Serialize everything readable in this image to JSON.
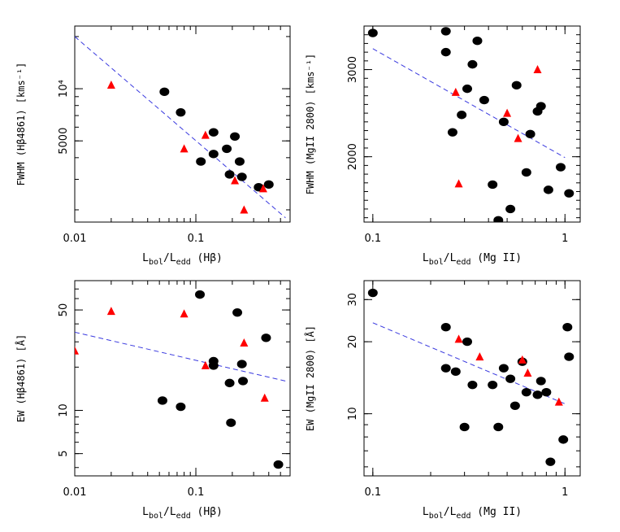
{
  "colors": {
    "circle": "#000000",
    "triangle": "#ff0000",
    "fit": "#3a3adf"
  },
  "chart_data": [
    {
      "id": "tl",
      "type": "scatter",
      "xscale": "log",
      "yscale": "log",
      "xlim": [
        0.01,
        0.6
      ],
      "ylim": [
        1700,
        23000
      ],
      "xticks": [
        {
          "v": 0.01,
          "label": "0.01"
        },
        {
          "v": 0.1,
          "label": "0.1"
        }
      ],
      "yticks": [
        {
          "v": 5000,
          "label": "5000"
        },
        {
          "v": 10000,
          "label": "10⁴"
        }
      ],
      "xlabel": {
        "main": "L",
        "sub1": "bol",
        "mid": "/L",
        "sub2": "edd",
        "tail": " (Hβ)"
      },
      "ylabel": "FWHM (Hβ4861) [kms⁻¹]",
      "fit": [
        [
          0.01,
          20000
        ],
        [
          0.55,
          1800
        ]
      ],
      "series": [
        {
          "marker": "circle",
          "points": [
            [
              0.055,
              9600
            ],
            [
              0.075,
              7300
            ],
            [
              0.11,
              3800
            ],
            [
              0.14,
              5600
            ],
            [
              0.14,
              4200
            ],
            [
              0.18,
              4500
            ],
            [
              0.19,
              3200
            ],
            [
              0.21,
              5300
            ],
            [
              0.23,
              3800
            ],
            [
              0.24,
              3100
            ],
            [
              0.33,
              2700
            ],
            [
              0.4,
              2800
            ]
          ]
        },
        {
          "marker": "triangle",
          "points": [
            [
              0.02,
              10500
            ],
            [
              0.08,
              4500
            ],
            [
              0.12,
              5400
            ],
            [
              0.21,
              2950
            ],
            [
              0.25,
              2000
            ],
            [
              0.36,
              2650
            ]
          ]
        }
      ]
    },
    {
      "id": "tr",
      "type": "scatter",
      "xscale": "log",
      "yscale": "linear",
      "xlim": [
        0.09,
        1.2
      ],
      "ylim": [
        1250,
        3500
      ],
      "xticks": [
        {
          "v": 0.1,
          "label": "0.1"
        },
        {
          "v": 1,
          "label": "1"
        }
      ],
      "yticks": [
        {
          "v": 2000,
          "label": "2000"
        },
        {
          "v": 3000,
          "label": "3000"
        }
      ],
      "xlabel": {
        "main": "L",
        "sub1": "bol",
        "mid": "/L",
        "sub2": "edd",
        "tail": " (Mg II)"
      },
      "ylabel": "FWHM (MgII 2800) [kms⁻¹]",
      "fit": [
        [
          0.1,
          3240
        ],
        [
          1.0,
          1990
        ]
      ],
      "series": [
        {
          "marker": "circle",
          "points": [
            [
              0.1,
              3420
            ],
            [
              0.24,
              3440
            ],
            [
              0.24,
              3200
            ],
            [
              0.26,
              2280
            ],
            [
              0.29,
              2480
            ],
            [
              0.31,
              2780
            ],
            [
              0.33,
              3060
            ],
            [
              0.35,
              3330
            ],
            [
              0.38,
              2650
            ],
            [
              0.42,
              1680
            ],
            [
              0.45,
              1270
            ],
            [
              0.48,
              2400
            ],
            [
              0.52,
              1400
            ],
            [
              0.56,
              2820
            ],
            [
              0.63,
              1820
            ],
            [
              0.66,
              2260
            ],
            [
              0.72,
              2520
            ],
            [
              0.75,
              2580
            ],
            [
              0.82,
              1620
            ],
            [
              0.95,
              1880
            ],
            [
              1.05,
              1580
            ]
          ]
        },
        {
          "marker": "triangle",
          "points": [
            [
              0.27,
              2740
            ],
            [
              0.28,
              1690
            ],
            [
              0.5,
              2500
            ],
            [
              0.57,
              2210
            ],
            [
              0.72,
              3000
            ]
          ]
        }
      ]
    },
    {
      "id": "bl",
      "type": "scatter",
      "xscale": "log",
      "yscale": "log",
      "xlim": [
        0.01,
        0.6
      ],
      "ylim": [
        3.5,
        80
      ],
      "xticks": [
        {
          "v": 0.01,
          "label": "0.01"
        },
        {
          "v": 0.1,
          "label": "0.1"
        }
      ],
      "yticks": [
        {
          "v": 5,
          "label": "5"
        },
        {
          "v": 10,
          "label": "10"
        },
        {
          "v": 50,
          "label": "50"
        }
      ],
      "xlabel": {
        "main": "L",
        "sub1": "bol",
        "mid": "/L",
        "sub2": "edd",
        "tail": " (Hβ)"
      },
      "ylabel": "EW (Hβ4861) [Å]",
      "fit": [
        [
          0.01,
          35
        ],
        [
          0.55,
          16
        ]
      ],
      "series": [
        {
          "marker": "circle",
          "points": [
            [
              0.053,
              11.7
            ],
            [
              0.075,
              10.6
            ],
            [
              0.108,
              64
            ],
            [
              0.14,
              22
            ],
            [
              0.14,
              20.5
            ],
            [
              0.19,
              15.5
            ],
            [
              0.195,
              8.2
            ],
            [
              0.22,
              48
            ],
            [
              0.24,
              21
            ],
            [
              0.245,
              16
            ],
            [
              0.38,
              32
            ],
            [
              0.48,
              4.2
            ]
          ]
        },
        {
          "marker": "triangle",
          "points": [
            [
              0.01,
              26
            ],
            [
              0.02,
              49
            ],
            [
              0.08,
              47
            ],
            [
              0.12,
              20.5
            ],
            [
              0.25,
              29.5
            ],
            [
              0.37,
              12.2
            ]
          ]
        }
      ]
    },
    {
      "id": "br",
      "type": "scatter",
      "xscale": "log",
      "yscale": "log",
      "xlim": [
        0.09,
        1.2
      ],
      "ylim": [
        5.5,
        36
      ],
      "xticks": [
        {
          "v": 0.1,
          "label": "0.1"
        },
        {
          "v": 1,
          "label": "1"
        }
      ],
      "yticks": [
        {
          "v": 10,
          "label": "10"
        },
        {
          "v": 20,
          "label": "20"
        },
        {
          "v": 30,
          "label": "30"
        }
      ],
      "xlabel": {
        "main": "L",
        "sub1": "bol",
        "mid": "/L",
        "sub2": "edd",
        "tail": " (Mg II)"
      },
      "ylabel": "EW (MgII 2800) [Å]",
      "fit": [
        [
          0.1,
          24
        ],
        [
          1.0,
          11
        ]
      ],
      "series": [
        {
          "marker": "circle",
          "points": [
            [
              0.1,
              32
            ],
            [
              0.24,
              23
            ],
            [
              0.24,
              15.5
            ],
            [
              0.27,
              15
            ],
            [
              0.3,
              8.8
            ],
            [
              0.31,
              20
            ],
            [
              0.33,
              13.2
            ],
            [
              0.42,
              13.2
            ],
            [
              0.45,
              8.8
            ],
            [
              0.48,
              15.5
            ],
            [
              0.52,
              14
            ],
            [
              0.55,
              10.8
            ],
            [
              0.6,
              16.5
            ],
            [
              0.63,
              12.3
            ],
            [
              0.72,
              12
            ],
            [
              0.75,
              13.7
            ],
            [
              0.8,
              12.3
            ],
            [
              0.84,
              6.3
            ],
            [
              0.98,
              7.8
            ],
            [
              1.03,
              23
            ],
            [
              1.05,
              17.3
            ]
          ]
        },
        {
          "marker": "triangle",
          "points": [
            [
              0.28,
              20.5
            ],
            [
              0.36,
              17.3
            ],
            [
              0.6,
              16.8
            ],
            [
              0.64,
              14.8
            ],
            [
              0.93,
              11.2
            ]
          ]
        }
      ]
    }
  ]
}
